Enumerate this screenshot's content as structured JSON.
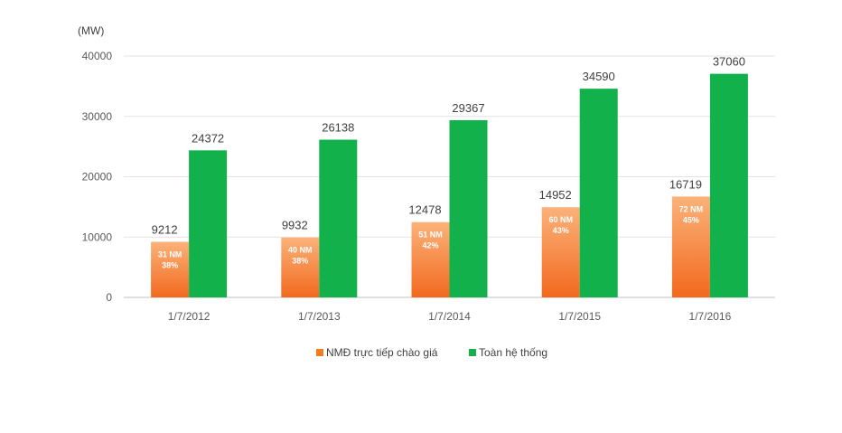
{
  "chart_data": {
    "type": "bar",
    "unit_label": "(MW)",
    "categories": [
      "1/7/2012",
      "1/7/2013",
      "1/7/2014",
      "1/7/2015",
      "1/7/2016"
    ],
    "series": [
      {
        "name": "NMĐ trực tiếp chào giá",
        "color": "#f47b20",
        "values": [
          9212,
          9932,
          12478,
          14952,
          16719
        ],
        "inner_labels": [
          [
            "31 NM",
            "38%"
          ],
          [
            "40 NM",
            "38%"
          ],
          [
            "51 NM",
            "42%"
          ],
          [
            "60 NM",
            "43%"
          ],
          [
            "72 NM",
            "45%"
          ]
        ]
      },
      {
        "name": "Toàn hệ thống",
        "color": "#13b14b",
        "values": [
          24372,
          26138,
          29367,
          34590,
          37060
        ]
      }
    ],
    "ylim": [
      0,
      40000
    ],
    "yticks": [
      0,
      10000,
      20000,
      30000,
      40000
    ],
    "grid": true,
    "legend_position": "bottom"
  }
}
